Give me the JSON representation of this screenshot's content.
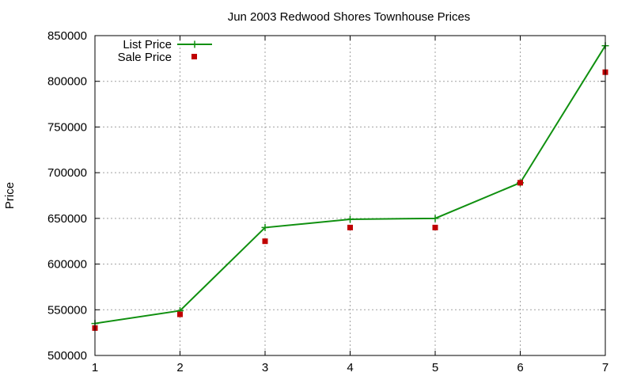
{
  "chart_data": {
    "type": "line",
    "title": "Jun 2003 Redwood Shores Townhouse Prices",
    "xlabel": "",
    "ylabel": "Price",
    "x": [
      1,
      2,
      3,
      4,
      5,
      6,
      7
    ],
    "xlim": [
      1,
      7
    ],
    "ylim": [
      500000,
      850000
    ],
    "xticks": [
      "1",
      "2",
      "3",
      "4",
      "5",
      "6",
      "7"
    ],
    "yticks": [
      "500000",
      "550000",
      "600000",
      "650000",
      "700000",
      "750000",
      "800000",
      "850000"
    ],
    "grid": true,
    "legend_position": "top-left",
    "series": [
      {
        "name": "List Price",
        "style": "line-with-plus",
        "color": "#109010",
        "values": [
          535000,
          549000,
          640000,
          649000,
          650000,
          689000,
          839000
        ]
      },
      {
        "name": "Sale Price",
        "style": "square-points",
        "color": "#c00000",
        "values": [
          530000,
          545000,
          625000,
          640000,
          640000,
          689000,
          810000
        ]
      }
    ]
  }
}
